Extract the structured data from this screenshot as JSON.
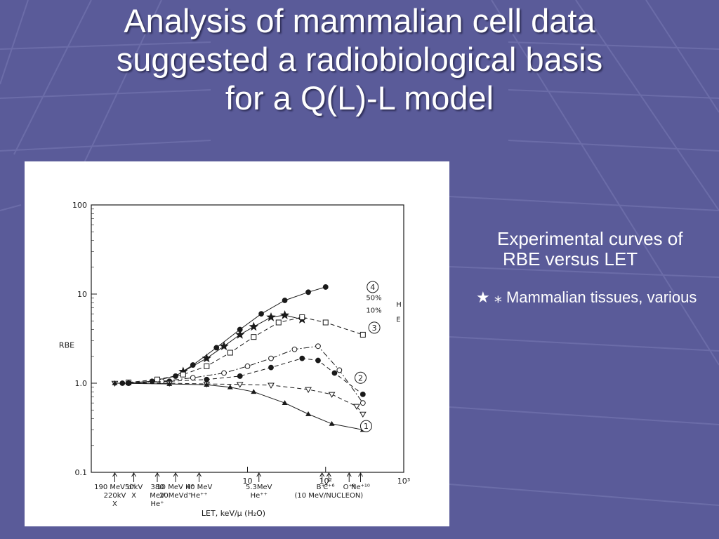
{
  "slide": {
    "title_lines": [
      "Analysis of mammalian cell data",
      "suggested a radiobiological basis",
      "for a Q(L)-L model"
    ],
    "bullets": [
      {
        "text": "Experimental curves of RBE versus LET"
      },
      {
        "marker": "★ ⁎",
        "text": "Mammalian tissues, various"
      }
    ],
    "colors": {
      "background": "#5a5b99",
      "text": "#ffffff",
      "figure_bg": "#ffffff",
      "ink": "#1a1a1a"
    }
  },
  "chart_data": {
    "type": "line",
    "xscale": "log",
    "yscale": "log",
    "xlim": [
      0.1,
      1000
    ],
    "ylim": [
      0.1,
      100
    ],
    "ylabel": "RBE",
    "xlabel": "LET, keV/μ (H₂O)",
    "y_ticks": [
      {
        "v": 100,
        "label": "100"
      },
      {
        "v": 10,
        "label": "10"
      },
      {
        "v": 1,
        "label": "1.0"
      },
      {
        "v": 0.1,
        "label": "0.1"
      }
    ],
    "x_ticks": [
      {
        "v": 10,
        "label": "10"
      },
      {
        "v": 100,
        "label": "10²"
      },
      {
        "v": 1000,
        "label": "10³"
      }
    ],
    "radiation_markers": [
      {
        "x": 0.2,
        "lines": [
          "190 MeV d⁺",
          "220kV",
          "X"
        ]
      },
      {
        "x": 0.35,
        "lines": [
          "50kV",
          "X"
        ]
      },
      {
        "x": 0.7,
        "lines": [
          "380",
          "MeV",
          "He⁺"
        ]
      },
      {
        "x": 1.2,
        "lines": [
          "10 MeV H⁺",
          "20MeVd⁺"
        ]
      },
      {
        "x": 2.4,
        "lines": [
          "40 MeV",
          "He⁺⁺"
        ]
      },
      {
        "x": 14,
        "lines": [
          "5.3MeV",
          "He⁺⁺"
        ]
      },
      {
        "x": 90,
        "lines": [
          "B⁺⁵"
        ]
      },
      {
        "x": 110,
        "lines": [
          "C⁺⁶"
        ]
      },
      {
        "x": 200,
        "lines": [
          "O⁺⁸"
        ]
      },
      {
        "x": 280,
        "lines": [
          "Ne⁺¹⁰"
        ]
      }
    ],
    "nucleon_label": "(10 MeV/NUCLEON)",
    "curve_labels": [
      {
        "text": "4",
        "x": 400,
        "y": 12
      },
      {
        "text": "3",
        "x": 420,
        "y": 4.2
      },
      {
        "text": "2",
        "x": 280,
        "y": 1.15
      },
      {
        "text": "1",
        "x": 330,
        "y": 0.33
      }
    ],
    "legend_entries": [
      {
        "text": "50%",
        "x": 330,
        "y": 8.6
      },
      {
        "text": "10%",
        "x": 330,
        "y": 6.2
      },
      {
        "text": "H",
        "x": 800,
        "y": 7.2
      },
      {
        "text": "E",
        "x": 800,
        "y": 4.9
      }
    ],
    "series": [
      {
        "marker": "filled-circle",
        "line": "solid",
        "x": [
          0.25,
          0.6,
          1.2,
          2,
          4,
          8,
          15,
          30,
          60,
          100
        ],
        "y": [
          1.0,
          1.05,
          1.2,
          1.6,
          2.5,
          4,
          6,
          8.5,
          10.5,
          12
        ]
      },
      {
        "marker": "filled-star",
        "line": "solid",
        "x": [
          1.5,
          3,
          5,
          8,
          12,
          20,
          30,
          50
        ],
        "y": [
          1.35,
          1.9,
          2.6,
          3.5,
          4.3,
          5.5,
          5.8,
          5.2
        ]
      },
      {
        "marker": "open-square",
        "line": "dashed",
        "x": [
          0.3,
          0.7,
          1.5,
          3,
          6,
          12,
          25,
          50,
          100,
          300
        ],
        "y": [
          1.02,
          1.1,
          1.25,
          1.55,
          2.2,
          3.3,
          4.8,
          5.5,
          4.8,
          3.5
        ]
      },
      {
        "marker": "open-circle",
        "line": "dash-dot",
        "x": [
          0.3,
          0.8,
          2,
          5,
          10,
          20,
          40,
          80,
          150,
          300
        ],
        "y": [
          1.0,
          1.05,
          1.15,
          1.3,
          1.55,
          1.9,
          2.4,
          2.6,
          1.4,
          0.6
        ]
      },
      {
        "marker": "filled-circle",
        "line": "dashed",
        "x": [
          0.3,
          1,
          3,
          8,
          20,
          50,
          80,
          130,
          300
        ],
        "y": [
          1.0,
          1.05,
          1.1,
          1.2,
          1.5,
          1.9,
          1.8,
          1.3,
          0.75
        ]
      },
      {
        "marker": "open-triangle-down",
        "line": "dashed",
        "x": [
          0.2,
          1,
          3,
          8,
          20,
          60,
          120,
          250,
          300
        ],
        "y": [
          1.0,
          1.0,
          0.98,
          0.97,
          0.95,
          0.85,
          0.75,
          0.55,
          0.45
        ]
      },
      {
        "marker": "filled-triangle-up",
        "line": "solid",
        "x": [
          0.2,
          1,
          3,
          6,
          12,
          30,
          60,
          120,
          300
        ],
        "y": [
          1.0,
          0.98,
          0.96,
          0.9,
          0.8,
          0.6,
          0.45,
          0.35,
          0.3
        ]
      }
    ]
  }
}
